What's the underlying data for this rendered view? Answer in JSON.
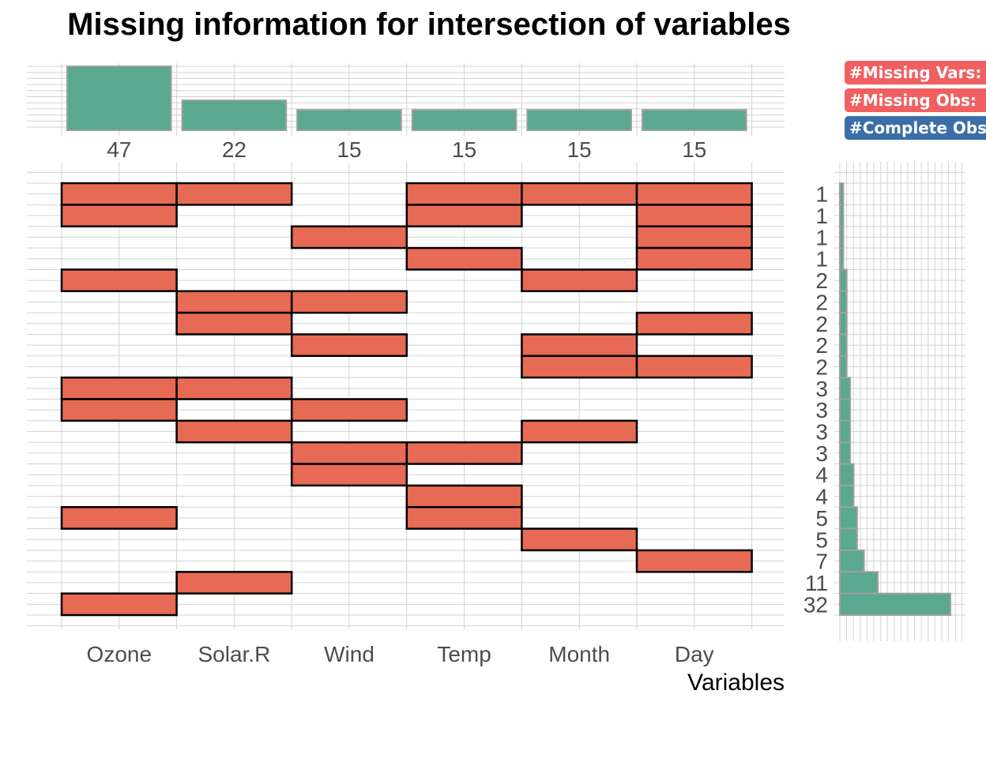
{
  "chart_data": {
    "type": "upset",
    "title": "Missing information for intersection of variables",
    "xlabel": "Variables",
    "variables": [
      "Ozone",
      "Solar.R",
      "Wind",
      "Temp",
      "Month",
      "Day"
    ],
    "variable_missing_counts": [
      47,
      22,
      15,
      15,
      15,
      15
    ],
    "intersections": [
      {
        "count": 1,
        "missing": [
          "Ozone",
          "Solar.R",
          "Temp",
          "Month",
          "Day"
        ]
      },
      {
        "count": 1,
        "missing": [
          "Ozone",
          "Temp",
          "Day"
        ]
      },
      {
        "count": 1,
        "missing": [
          "Wind",
          "Day"
        ]
      },
      {
        "count": 1,
        "missing": [
          "Temp",
          "Day"
        ]
      },
      {
        "count": 2,
        "missing": [
          "Ozone",
          "Month"
        ]
      },
      {
        "count": 2,
        "missing": [
          "Solar.R",
          "Wind"
        ]
      },
      {
        "count": 2,
        "missing": [
          "Solar.R",
          "Day"
        ]
      },
      {
        "count": 2,
        "missing": [
          "Wind",
          "Month"
        ]
      },
      {
        "count": 2,
        "missing": [
          "Month",
          "Day"
        ]
      },
      {
        "count": 3,
        "missing": [
          "Ozone",
          "Solar.R"
        ]
      },
      {
        "count": 3,
        "missing": [
          "Ozone",
          "Wind"
        ]
      },
      {
        "count": 3,
        "missing": [
          "Solar.R",
          "Month"
        ]
      },
      {
        "count": 3,
        "missing": [
          "Wind",
          "Temp"
        ]
      },
      {
        "count": 4,
        "missing": [
          "Wind"
        ]
      },
      {
        "count": 4,
        "missing": [
          "Temp"
        ]
      },
      {
        "count": 5,
        "missing": [
          "Ozone",
          "Temp"
        ]
      },
      {
        "count": 5,
        "missing": [
          "Month"
        ]
      },
      {
        "count": 7,
        "missing": [
          "Day"
        ]
      },
      {
        "count": 11,
        "missing": [
          "Solar.R"
        ]
      },
      {
        "count": 32,
        "missing": [
          "Ozone"
        ]
      }
    ],
    "legend": {
      "placement": "top-right",
      "items": [
        {
          "label": "#Missing Vars:",
          "color": "#f06060"
        },
        {
          "label": "#Missing Obs:",
          "color": "#f06060"
        },
        {
          "label": "#Complete Obs",
          "color": "#3b6ea8"
        }
      ]
    },
    "colors": {
      "bar_fill": "#5aa890",
      "bar_stroke": "#a0a0a0",
      "cell_fill": "#e76a55",
      "cell_stroke": "#000000",
      "grid": "#d3d3d3"
    }
  }
}
